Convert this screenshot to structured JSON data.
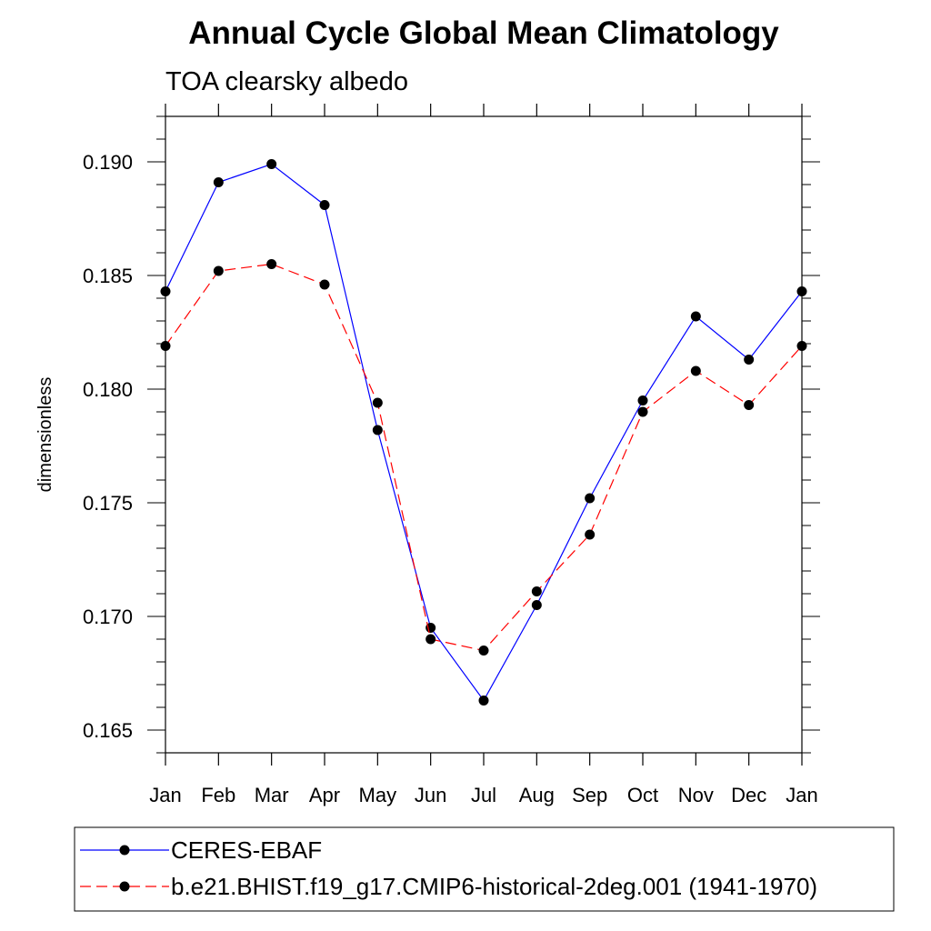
{
  "chart_data": {
    "type": "line",
    "title": "Annual Cycle Global Mean Climatology",
    "subtitle": "TOA clearsky albedo",
    "ylabel": "dimensionless",
    "xlabel": "",
    "categories": [
      "Jan",
      "Feb",
      "Mar",
      "Apr",
      "May",
      "Jun",
      "Jul",
      "Aug",
      "Sep",
      "Oct",
      "Nov",
      "Dec",
      "Jan"
    ],
    "ylim": [
      0.164,
      0.192
    ],
    "yticks": [
      0.165,
      0.17,
      0.175,
      0.18,
      0.185,
      0.19
    ],
    "ytick_labels": [
      "0.165",
      "0.170",
      "0.175",
      "0.180",
      "0.185",
      "0.190"
    ],
    "grid": false,
    "legend_position": "bottom",
    "series": [
      {
        "name": "CERES-EBAF",
        "color": "#0000ff",
        "dash": "solid",
        "marker": "circle",
        "values": [
          0.1843,
          0.1891,
          0.1899,
          0.1881,
          0.1782,
          0.1695,
          0.1663,
          0.1705,
          0.1752,
          0.1795,
          0.1832,
          0.1813,
          0.1843
        ]
      },
      {
        "name": "b.e21.BHIST.f19_g17.CMIP6-historical-2deg.001 (1941-1970)",
        "color": "#ff0000",
        "dash": "dashed",
        "marker": "circle",
        "values": [
          0.1819,
          0.1852,
          0.1855,
          0.1846,
          0.1794,
          0.169,
          0.1685,
          0.1711,
          0.1736,
          0.179,
          0.1808,
          0.1793,
          0.1819
        ]
      }
    ]
  }
}
